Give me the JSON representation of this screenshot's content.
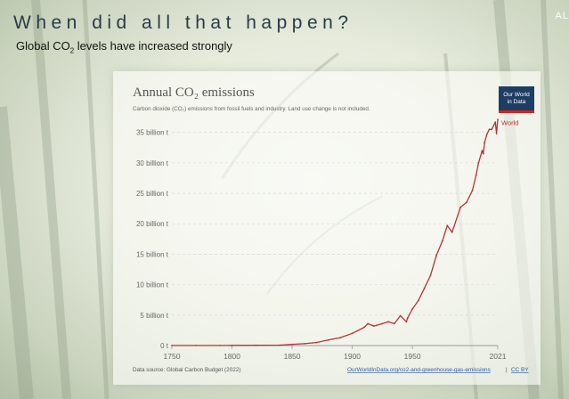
{
  "slide": {
    "title": "When did all that happen?",
    "subtitle_prefix": "Global CO",
    "subtitle_sub": "2",
    "subtitle_suffix": " levels have increased strongly",
    "corner_text": "AL"
  },
  "logo": {
    "line1": "Our World",
    "line2": "in Data"
  },
  "colors": {
    "series": "#b13534",
    "title_text": "#2b3a48",
    "logo_bg": "#1d3d63",
    "logo_accent": "#ce261e"
  },
  "chart_data": {
    "type": "line",
    "title": "Annual CO₂ emissions",
    "subtitle": "Carbon dioxide (CO₂) emissions from fossil fuels and industry. Land use change is not included.",
    "xlim": [
      1750,
      2021
    ],
    "ylim": [
      0,
      37
    ],
    "x_ticks": [
      1750,
      1800,
      1850,
      1900,
      1950,
      2021
    ],
    "y_ticks": [
      {
        "value": 0,
        "label": "0 t"
      },
      {
        "value": 5,
        "label": "5 billion t"
      },
      {
        "value": 10,
        "label": "10 billion t"
      },
      {
        "value": 15,
        "label": "15 billion t"
      },
      {
        "value": 20,
        "label": "20 billion t"
      },
      {
        "value": 25,
        "label": "25 billion t"
      },
      {
        "value": 30,
        "label": "30 billion t"
      },
      {
        "value": 35,
        "label": "35 billion t"
      }
    ],
    "grid": true,
    "series": [
      {
        "name": "World",
        "x": [
          1750,
          1770,
          1790,
          1800,
          1820,
          1840,
          1850,
          1860,
          1870,
          1880,
          1890,
          1900,
          1910,
          1913,
          1918,
          1920,
          1925,
          1930,
          1935,
          1940,
          1945,
          1946,
          1950,
          1955,
          1960,
          1965,
          1970,
          1975,
          1979,
          1983,
          1990,
          1995,
          2000,
          2003,
          2005,
          2008,
          2009,
          2010,
          2012,
          2014,
          2016,
          2019,
          2020,
          2021
        ],
        "y": [
          0.01,
          0.02,
          0.02,
          0.03,
          0.04,
          0.08,
          0.2,
          0.3,
          0.5,
          0.9,
          1.3,
          2.0,
          3.0,
          3.6,
          3.2,
          3.3,
          3.6,
          3.9,
          3.6,
          4.9,
          3.9,
          4.5,
          6.0,
          7.4,
          9.4,
          11.5,
          14.8,
          17.2,
          19.7,
          18.6,
          22.7,
          23.5,
          25.5,
          28.0,
          30.0,
          32.0,
          31.5,
          33.3,
          34.7,
          35.5,
          35.5,
          36.7,
          34.8,
          37.1
        ]
      }
    ],
    "source_text": "Data source: Global Carbon Budget (2022)",
    "link_text": "OurWorldInData.org/co2-and-greenhouse-gas-emissions",
    "license_text": "CC BY",
    "separator": "|"
  }
}
